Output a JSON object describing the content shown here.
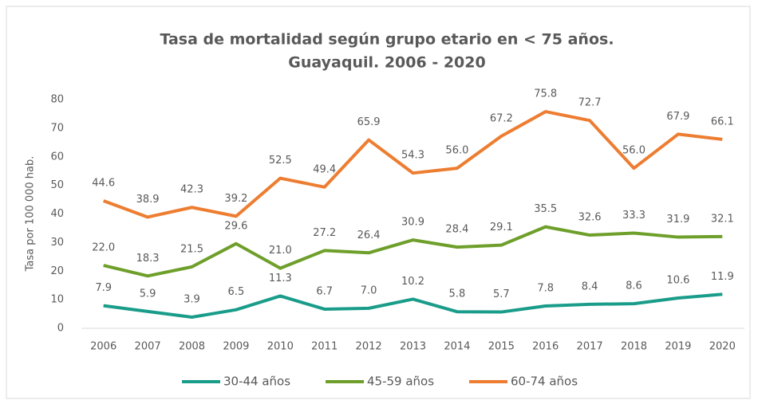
{
  "chart_data": {
    "type": "line",
    "title": [
      "Tasa de mortalidad según grupo etario en < 75 años.",
      "Guayaquil. 2006 - 2020"
    ],
    "y_axis_label": "Tasa por 100 000 hab.",
    "categories": [
      "2006",
      "2007",
      "2008",
      "2009",
      "2010",
      "2011",
      "2012",
      "2013",
      "2014",
      "2015",
      "2016",
      "2017",
      "2018",
      "2019",
      "2020"
    ],
    "series": [
      {
        "name": "30-44 años",
        "color": "#1a9c8a",
        "values": [
          7.9,
          5.9,
          3.9,
          6.5,
          11.3,
          6.7,
          7,
          10.2,
          5.8,
          5.7,
          7.8,
          8.4,
          8.6,
          10.6,
          11.9
        ],
        "value_labels": [
          "7.9",
          "5.9",
          "3.9",
          "6.5",
          "11.3",
          "6.7",
          "7.0",
          "10.2",
          "5.8",
          "5.7",
          "7.8",
          "8.4",
          "8.6",
          "10.6",
          "11.9"
        ]
      },
      {
        "name": "45-59 años",
        "color": "#6e9f2a",
        "values": [
          22,
          18.3,
          21.5,
          29.6,
          21,
          27.2,
          26.4,
          30.9,
          28.4,
          29.1,
          35.5,
          32.6,
          33.3,
          31.9,
          32.1
        ],
        "value_labels": [
          "22.0",
          "18.3",
          "21.5",
          "29.6",
          "21.0",
          "27.2",
          "26.4",
          "30.9",
          "28.4",
          "29.1",
          "35.5",
          "32.6",
          "33.3",
          "31.9",
          "32.1"
        ]
      },
      {
        "name": "60-74 años",
        "color": "#ed7d31",
        "values": [
          44.6,
          38.9,
          42.3,
          39.2,
          52.5,
          49.4,
          65.9,
          54.3,
          56,
          67.2,
          75.8,
          72.7,
          56,
          67.9,
          66.1
        ],
        "value_labels": [
          "44.6",
          "38.9",
          "42.3",
          "39.2",
          "52.5",
          "49.4",
          "65.9",
          "54.3",
          "56.0",
          "67.2",
          "75.8",
          "72.7",
          "56.0",
          "67.9",
          "66.1"
        ]
      }
    ],
    "ylim": [
      0,
      80
    ],
    "yticks": [
      0,
      10,
      20,
      30,
      40,
      50,
      60,
      70,
      80
    ],
    "grid": false,
    "legend": "bottom"
  }
}
